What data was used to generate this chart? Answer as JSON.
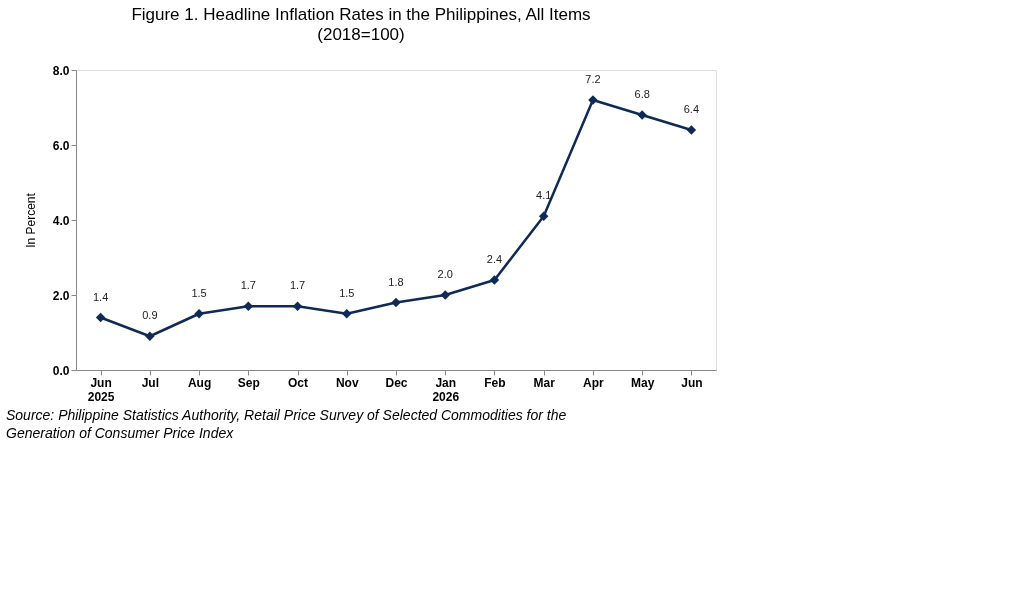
{
  "chart_data": {
    "type": "line",
    "title": "Figure 1. Headline Inflation Rates in the Philippines, All Items",
    "subtitle": "(2018=100)",
    "ylabel": "In Percent",
    "categories": [
      "Jun\n2025",
      "Jul",
      "Aug",
      "Sep",
      "Oct",
      "Nov",
      "Dec",
      "Jan\n2026",
      "Feb",
      "Mar",
      "Apr",
      "May",
      "Jun"
    ],
    "series": [
      {
        "color": "#0f2a55",
        "values": [
          1.4,
          0.9,
          1.5,
          1.7,
          1.7,
          1.5,
          1.8,
          2.0,
          2.4,
          4.1,
          7.2,
          6.8,
          6.4
        ],
        "value_labels": [
          "1.4",
          "0.9",
          "1.5",
          "1.7",
          "1.7",
          "1.5",
          "1.8",
          "2.0",
          "2.4",
          "4.1",
          "7.2",
          "6.8",
          "6.4"
        ]
      }
    ],
    "ylim": [
      0,
      8
    ],
    "yticks": [
      {
        "value": 0,
        "label": "0.0"
      },
      {
        "value": 2,
        "label": "2.0"
      },
      {
        "value": 4,
        "label": "4.0"
      },
      {
        "value": 6,
        "label": "6.0"
      },
      {
        "value": 8,
        "label": "8.0"
      }
    ],
    "grid": false,
    "marker": "diamond",
    "line_style": "solid",
    "annotations": [
      "Source: Philippine Statistics Authority, Retail Price Survey of Selected Commodities for the Generation of Consumer Price Index"
    ]
  }
}
